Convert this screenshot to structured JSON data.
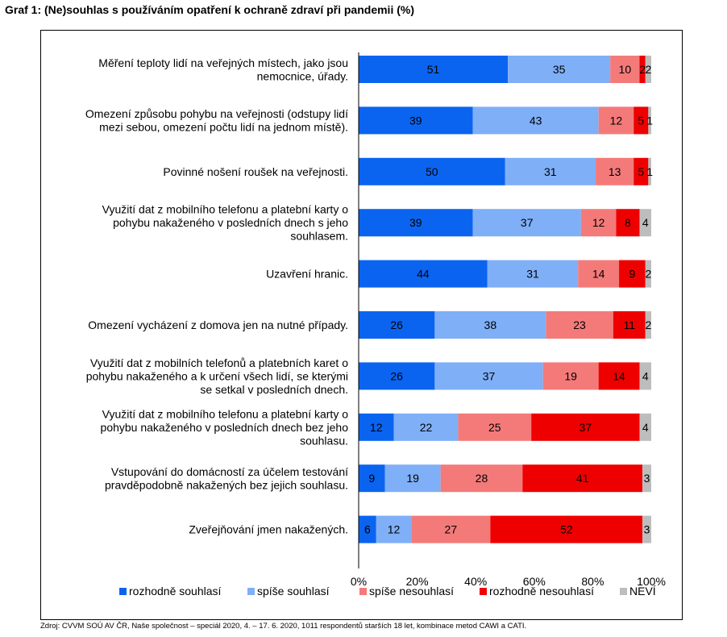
{
  "title": "Graf 1: (Ne)souhlas s používáním opatření k ochraně zdraví při pandemii (%)",
  "source": "Zdroj: CVVM SOÚ AV ČR, Naše společnost – speciál 2020, 4. – 17. 6. 2020, 1011 respondentů starších 18 let, kombinace metod CAWI a CATI.",
  "chart_data": {
    "type": "bar",
    "orientation": "horizontal",
    "stacked": "percent",
    "xlim": [
      0,
      100
    ],
    "x_ticks": [
      "0%",
      "20%",
      "40%",
      "60%",
      "80%",
      "100%"
    ],
    "legend_position": "bottom",
    "categories": [
      [
        "Měření teploty lidí na veřejných místech, jako jsou",
        "nemocnice, úřady."
      ],
      [
        "Omezení způsobu pohybu na veřejnosti (odstupy lidí",
        "mezi sebou, omezení počtu lidí na jednom místě)."
      ],
      [
        "Povinné nošení roušek na veřejnosti."
      ],
      [
        "Využití dat z mobilního telefonu a platební karty o",
        "pohybu nakaženého v posledních dnech s jeho",
        "souhlasem."
      ],
      [
        "Uzavření hranic."
      ],
      [
        "Omezení vycházení z domova jen na nutné případy."
      ],
      [
        "Využití dat z mobilních telefonů a platebních karet o",
        "pohybu nakaženého a k určení všech lidí, se kterými",
        "se setkal v posledních dnech."
      ],
      [
        "Využití dat z mobilního telefonu a platební karty o",
        "pohybu nakaženého v posledních dnech bez jeho",
        "souhlasu."
      ],
      [
        "Vstupování do domácností za účelem testování",
        "pravděpodobně nakažených bez jejich souhlasu."
      ],
      [
        "Zveřejňování jmen nakažených."
      ]
    ],
    "series": [
      {
        "name": "rozhodně souhlasí",
        "color": "#0A64F0",
        "values": [
          51,
          39,
          50,
          39,
          44,
          26,
          26,
          12,
          9,
          6
        ]
      },
      {
        "name": "spíše souhlasí",
        "color": "#7FAFF7",
        "values": [
          35,
          43,
          31,
          37,
          31,
          38,
          37,
          22,
          19,
          12
        ]
      },
      {
        "name": "spíše nesouhlasí",
        "color": "#F47A7A",
        "values": [
          10,
          12,
          13,
          12,
          14,
          23,
          19,
          25,
          28,
          27
        ]
      },
      {
        "name": "rozhodně nesouhlasí",
        "color": "#EE0000",
        "values": [
          2,
          5,
          5,
          8,
          9,
          11,
          14,
          37,
          41,
          52
        ]
      },
      {
        "name": "NEVÍ",
        "color": "#BDBDBD",
        "values": [
          2,
          1,
          1,
          4,
          2,
          2,
          4,
          4,
          3,
          3
        ]
      }
    ]
  }
}
